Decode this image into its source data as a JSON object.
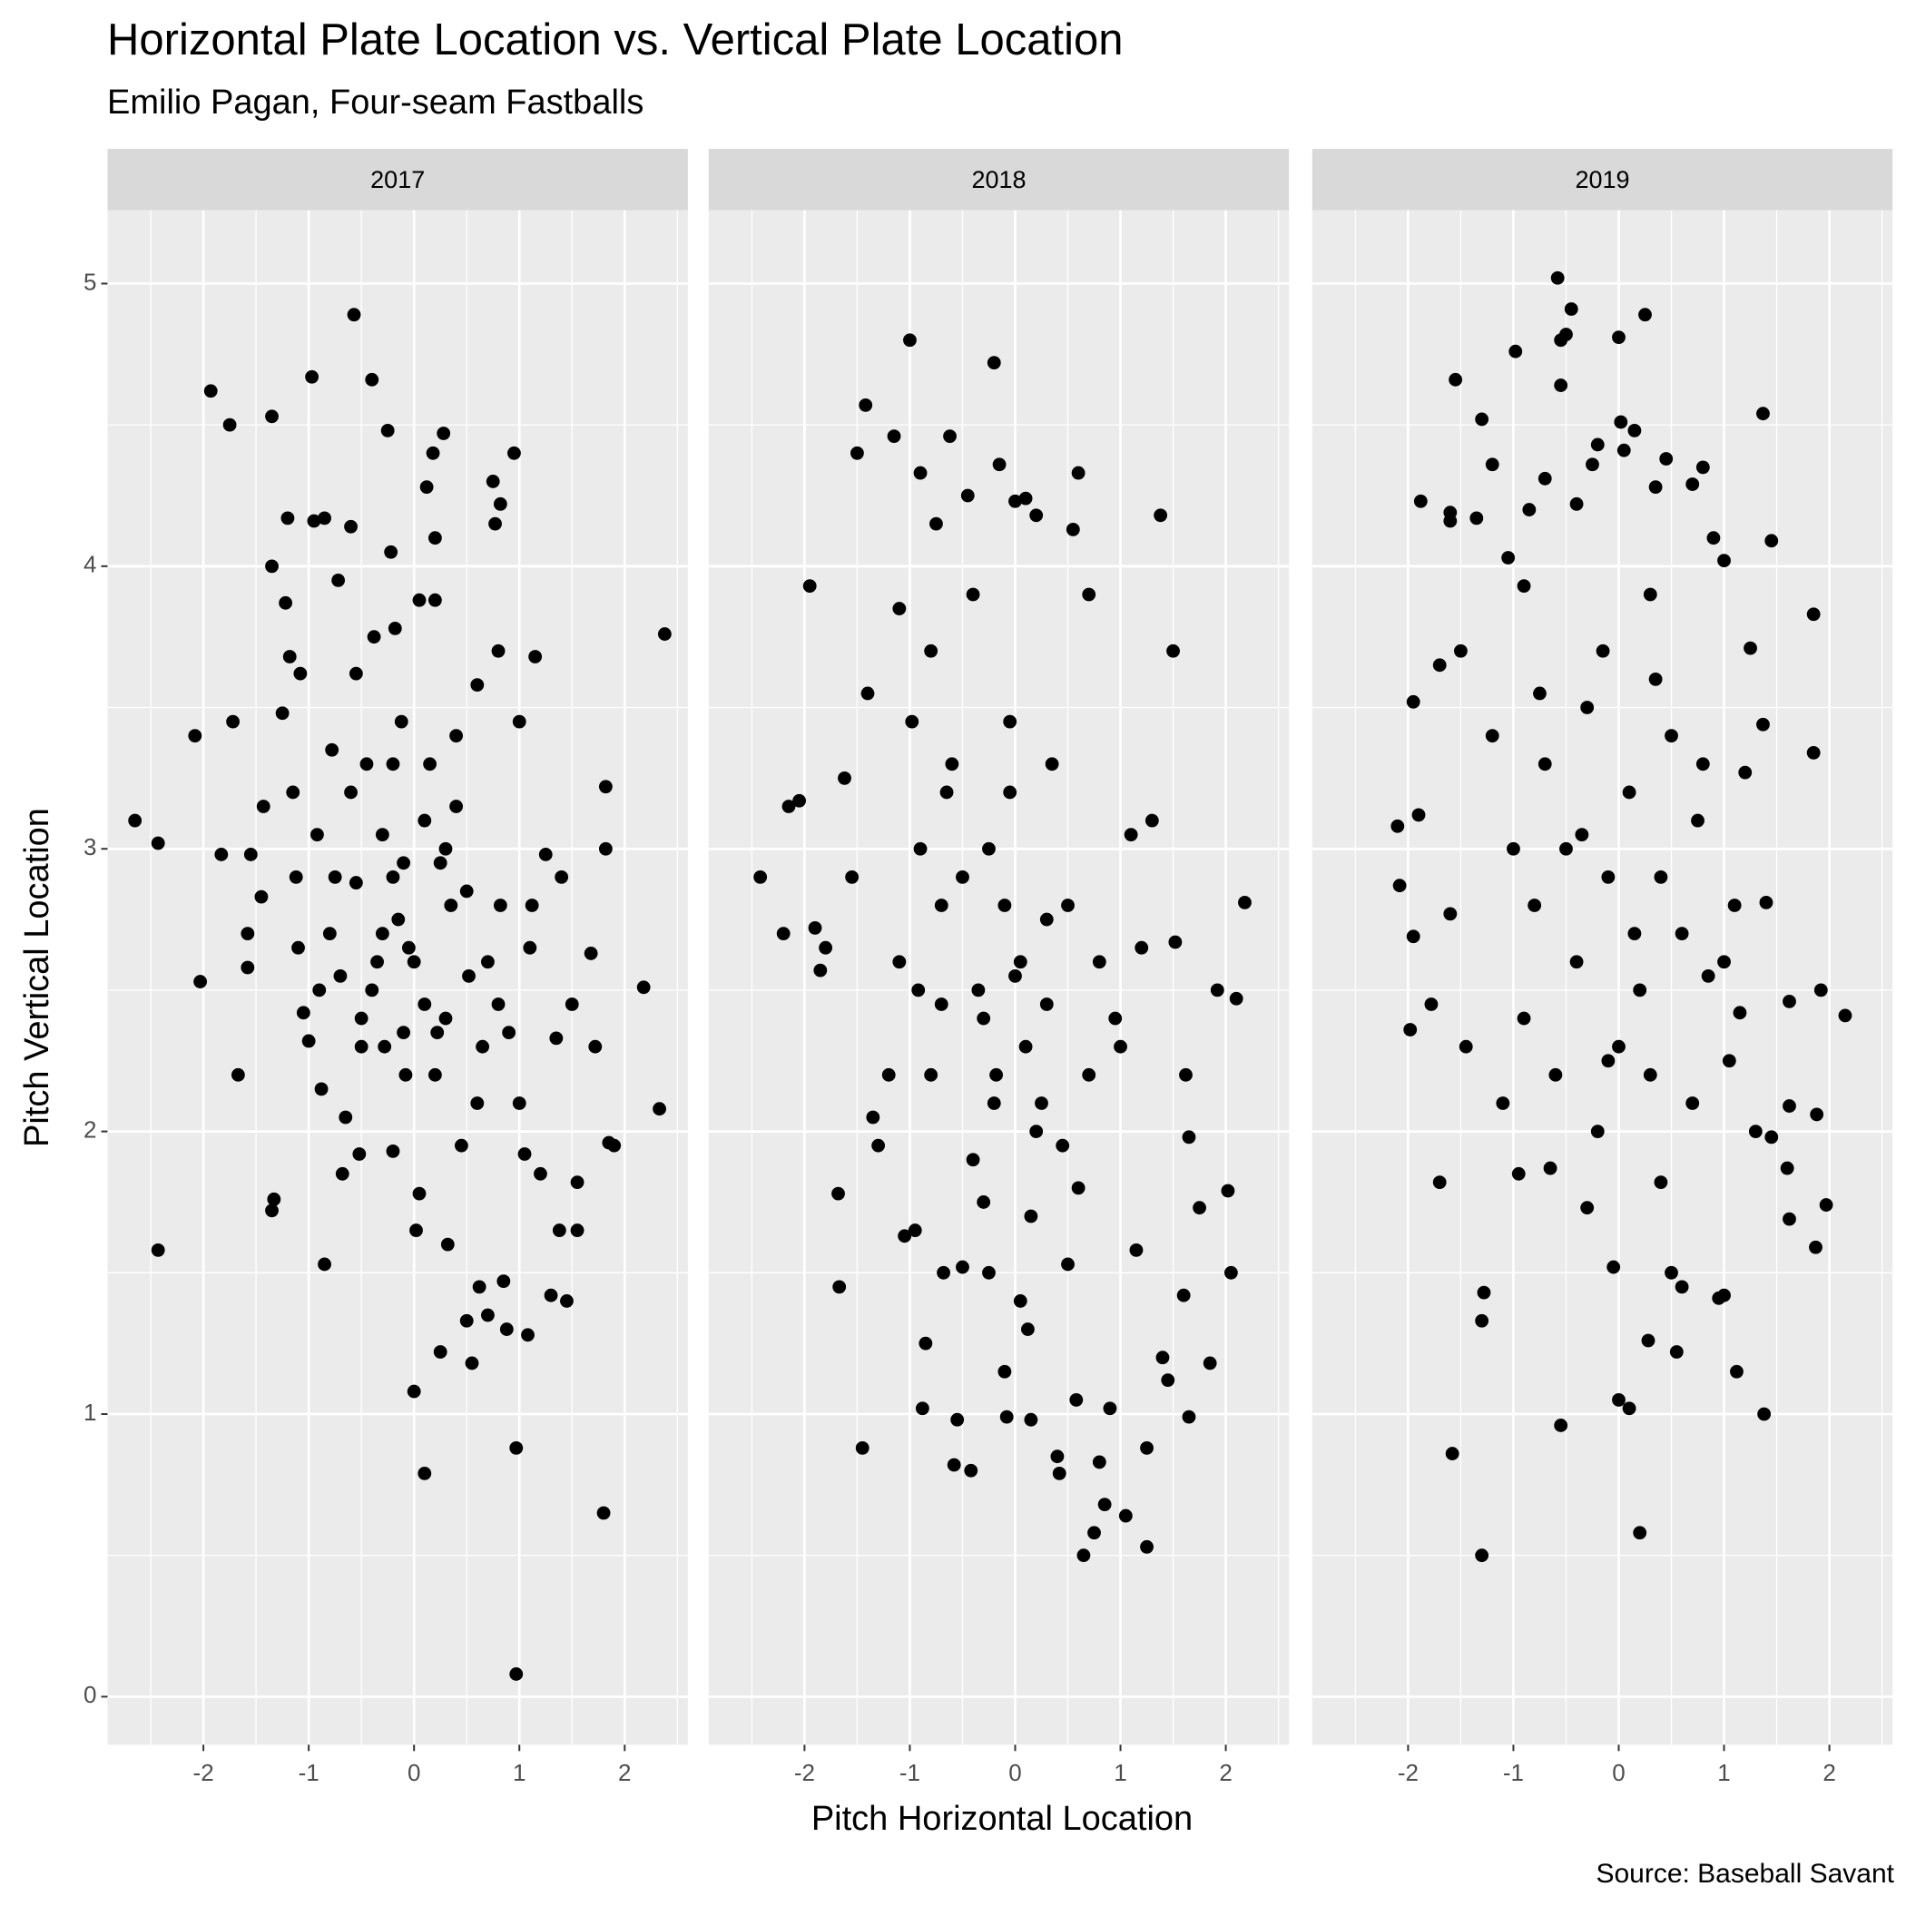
{
  "chart_data": {
    "type": "scatter",
    "title": "Horizontal Plate Location vs. Vertical Plate Location",
    "subtitle": "Emilio Pagan, Four-seam Fastballs",
    "x_label": "Pitch Horizontal Location",
    "y_label": "Pitch Vertical Location",
    "caption": "Source: Baseball Savant",
    "color": "#000000",
    "grid": true,
    "xlim": [
      -2.91,
      2.6
    ],
    "ylim": [
      -0.17,
      5.26
    ],
    "xticks": [
      -2,
      -1,
      0,
      1,
      2
    ],
    "yticks": [
      0,
      1,
      2,
      3,
      4,
      5
    ],
    "x_minor_breaks": [
      -2.5,
      -1.5,
      -0.5,
      0.5,
      1.5,
      2.5
    ],
    "y_minor_breaks": [
      0.5,
      1.5,
      2.5,
      3.5,
      4.5
    ],
    "panels": [
      {
        "name": "2017",
        "x": [
          -2.65,
          -2.43,
          -2.43,
          -2.08,
          -2.03,
          -1.93,
          -1.83,
          -1.75,
          -1.72,
          -1.67,
          -1.58,
          -1.58,
          -1.55,
          -1.45,
          -1.43,
          -1.35,
          -1.35,
          -1.35,
          -1.33,
          -1.25,
          -1.22,
          -1.2,
          -1.18,
          -1.15,
          -1.12,
          -1.1,
          -1.08,
          -1.05,
          -1.0,
          -0.97,
          -0.95,
          -0.92,
          -0.9,
          -0.88,
          -0.85,
          -0.85,
          -0.78,
          -0.75,
          -0.72,
          -0.7,
          -0.68,
          -0.65,
          -0.6,
          -0.57,
          -0.55,
          -0.55,
          -0.52,
          -0.5,
          -0.45,
          -0.4,
          -0.38,
          -0.35,
          -0.3,
          -0.28,
          -0.25,
          -0.22,
          -0.2,
          -0.18,
          -0.15,
          -0.12,
          -0.1,
          -0.08,
          -0.05,
          0.0,
          0.02,
          0.05,
          0.05,
          0.1,
          0.1,
          0.12,
          0.15,
          0.18,
          0.2,
          0.2,
          0.22,
          0.25,
          0.28,
          0.3,
          0.32,
          0.35,
          0.4,
          0.45,
          0.5,
          0.52,
          0.55,
          0.6,
          0.62,
          0.65,
          0.7,
          0.75,
          0.77,
          0.8,
          0.82,
          0.82,
          0.85,
          0.88,
          0.9,
          0.95,
          0.97,
          0.97,
          1.0,
          1.05,
          1.08,
          1.12,
          1.15,
          1.2,
          1.25,
          1.3,
          1.35,
          1.38,
          1.4,
          1.45,
          1.5,
          1.55,
          1.55,
          1.68,
          1.72,
          1.8,
          1.82,
          1.82,
          1.85,
          1.9,
          2.18,
          2.33,
          2.38,
          -0.3,
          -0.2,
          0.0,
          0.1,
          0.3,
          -0.1,
          0.5,
          -0.4,
          0.2,
          0.6,
          -0.6,
          0.4,
          0.7,
          -0.8,
          1.0,
          -0.2,
          0.25,
          -0.5,
          0.8,
          1.1
        ],
        "y": [
          3.1,
          3.02,
          1.58,
          3.4,
          2.53,
          4.62,
          2.98,
          4.5,
          3.45,
          2.2,
          2.7,
          2.58,
          2.98,
          2.83,
          3.15,
          4.53,
          4.0,
          1.72,
          1.76,
          3.48,
          3.87,
          4.17,
          3.68,
          3.2,
          2.9,
          2.65,
          3.62,
          2.42,
          2.32,
          4.67,
          4.16,
          3.05,
          2.5,
          2.15,
          1.53,
          4.17,
          3.35,
          2.9,
          3.95,
          2.55,
          1.85,
          2.05,
          4.14,
          4.89,
          3.62,
          2.88,
          1.92,
          2.4,
          3.3,
          4.66,
          3.75,
          2.6,
          3.05,
          2.3,
          4.48,
          4.05,
          1.93,
          3.78,
          2.75,
          3.45,
          2.95,
          2.2,
          2.65,
          1.08,
          1.65,
          3.88,
          1.78,
          2.45,
          0.79,
          4.28,
          3.3,
          4.4,
          4.1,
          3.88,
          2.35,
          1.22,
          4.47,
          3.0,
          1.6,
          2.8,
          3.15,
          1.95,
          1.33,
          2.55,
          1.18,
          3.58,
          1.45,
          2.3,
          1.35,
          4.3,
          4.15,
          3.7,
          2.8,
          4.22,
          1.47,
          1.3,
          2.35,
          4.4,
          0.88,
          0.08,
          3.45,
          1.92,
          1.28,
          2.8,
          3.68,
          1.85,
          2.98,
          1.42,
          2.33,
          1.65,
          2.9,
          1.4,
          2.45,
          1.82,
          1.65,
          2.63,
          2.3,
          0.65,
          3.22,
          3.0,
          1.96,
          1.95,
          2.51,
          2.08,
          3.76,
          2.7,
          2.9,
          2.6,
          3.1,
          2.4,
          2.35,
          2.85,
          2.5,
          2.2,
          2.1,
          3.2,
          3.4,
          2.6,
          2.7,
          2.1,
          3.3,
          2.95,
          2.3,
          2.45,
          2.65
        ]
      },
      {
        "name": "2018",
        "x": [
          -2.42,
          -2.2,
          -2.15,
          -2.05,
          -1.95,
          -1.9,
          -1.85,
          -1.8,
          -1.68,
          -1.67,
          -1.62,
          -1.55,
          -1.5,
          -1.45,
          -1.42,
          -1.4,
          -1.35,
          -1.3,
          -1.2,
          -1.15,
          -1.1,
          -1.05,
          -1.0,
          -0.98,
          -0.95,
          -0.92,
          -0.9,
          -0.88,
          -0.85,
          -0.8,
          -0.75,
          -0.7,
          -0.68,
          -0.65,
          -0.62,
          -0.58,
          -0.55,
          -0.5,
          -0.45,
          -0.42,
          -0.4,
          -0.35,
          -0.3,
          -0.25,
          -0.2,
          -0.18,
          -0.15,
          -0.1,
          -0.08,
          -0.05,
          0.0,
          0.05,
          0.1,
          0.12,
          0.15,
          0.2,
          0.25,
          0.3,
          0.35,
          0.4,
          0.42,
          0.5,
          0.55,
          0.58,
          0.6,
          0.65,
          0.7,
          0.75,
          0.8,
          0.85,
          0.9,
          0.95,
          1.05,
          1.1,
          1.15,
          1.2,
          1.25,
          1.25,
          1.3,
          1.38,
          1.4,
          1.45,
          1.5,
          1.52,
          1.6,
          1.62,
          1.65,
          1.65,
          1.75,
          1.85,
          1.92,
          2.02,
          2.05,
          2.1,
          2.18,
          -0.3,
          -0.1,
          0.1,
          0.2,
          -0.5,
          0.0,
          -0.2,
          0.3,
          -0.6,
          0.5,
          -0.4,
          0.15,
          -0.7,
          0.7,
          -0.9,
          0.45,
          -0.05,
          0.8,
          -1.1,
          0.6,
          -0.25,
          0.05,
          1.0,
          -0.8
        ],
        "y": [
          2.9,
          2.7,
          3.15,
          3.17,
          3.93,
          2.72,
          2.57,
          2.65,
          1.78,
          1.45,
          3.25,
          2.9,
          4.4,
          0.88,
          4.57,
          3.55,
          2.05,
          1.95,
          2.2,
          4.46,
          3.85,
          1.63,
          4.8,
          3.45,
          1.65,
          2.5,
          4.33,
          1.02,
          1.25,
          3.7,
          4.15,
          2.8,
          1.5,
          3.2,
          4.46,
          0.82,
          0.98,
          1.52,
          4.25,
          0.8,
          3.9,
          2.5,
          1.75,
          3.0,
          4.72,
          2.2,
          4.36,
          1.15,
          0.99,
          3.45,
          4.23,
          2.6,
          4.24,
          1.3,
          0.98,
          4.18,
          2.1,
          2.75,
          3.3,
          0.85,
          0.79,
          1.53,
          4.13,
          1.05,
          4.33,
          0.5,
          3.9,
          0.58,
          0.83,
          0.68,
          1.02,
          2.4,
          0.64,
          3.05,
          1.58,
          2.65,
          0.53,
          0.88,
          3.1,
          4.18,
          1.2,
          1.12,
          3.7,
          2.67,
          1.42,
          2.2,
          0.99,
          1.98,
          1.73,
          1.18,
          2.5,
          1.79,
          1.5,
          2.47,
          2.81,
          2.4,
          2.8,
          2.3,
          2.0,
          2.9,
          2.55,
          2.1,
          2.45,
          3.3,
          2.8,
          1.9,
          1.7,
          2.45,
          2.2,
          3.0,
          1.95,
          3.2,
          2.6,
          2.6,
          1.8,
          1.5,
          1.4,
          2.3,
          2.2
        ]
      },
      {
        "name": "2019",
        "x": [
          -2.1,
          -2.08,
          -1.98,
          -1.95,
          -1.95,
          -1.9,
          -1.88,
          -1.78,
          -1.7,
          -1.7,
          -1.6,
          -1.6,
          -1.6,
          -1.58,
          -1.55,
          -1.5,
          -1.45,
          -1.35,
          -1.3,
          -1.3,
          -1.28,
          -1.3,
          -1.2,
          -1.1,
          -1.05,
          -0.98,
          -0.95,
          -0.9,
          -0.85,
          -0.75,
          -0.7,
          -0.65,
          -0.58,
          -0.55,
          -0.55,
          -0.55,
          -0.5,
          -0.45,
          -0.4,
          -0.35,
          -0.3,
          -0.25,
          -0.2,
          -0.1,
          -0.05,
          0.0,
          0.0,
          0.02,
          0.05,
          0.1,
          0.15,
          0.2,
          0.25,
          0.28,
          0.3,
          0.35,
          0.4,
          0.45,
          0.5,
          0.55,
          0.6,
          0.7,
          0.75,
          0.8,
          0.85,
          0.9,
          0.95,
          1.0,
          1.0,
          1.05,
          1.1,
          1.12,
          1.15,
          1.2,
          1.25,
          1.3,
          1.37,
          1.37,
          1.38,
          1.4,
          1.45,
          1.45,
          1.6,
          1.62,
          1.62,
          1.62,
          1.85,
          1.85,
          1.87,
          1.88,
          1.92,
          1.97,
          2.15,
          -0.3,
          -0.1,
          0.1,
          0.2,
          -0.5,
          0.0,
          0.3,
          -0.4,
          0.5,
          -0.7,
          0.6,
          -0.2,
          0.4,
          -0.8,
          0.8,
          -1.0,
          0.15,
          -0.15,
          0.7,
          -0.6,
          1.0,
          -1.2,
          0.35,
          -0.9
        ],
        "y": [
          3.08,
          2.87,
          2.36,
          3.52,
          2.69,
          3.12,
          4.23,
          2.45,
          1.82,
          3.65,
          4.16,
          4.19,
          2.77,
          0.86,
          4.66,
          3.7,
          2.3,
          4.17,
          4.52,
          1.33,
          1.43,
          0.5,
          4.36,
          2.1,
          4.03,
          4.76,
          1.85,
          3.93,
          4.2,
          3.55,
          4.31,
          1.87,
          5.02,
          4.8,
          4.64,
          0.96,
          4.82,
          4.91,
          4.22,
          3.05,
          1.73,
          4.36,
          4.43,
          2.25,
          1.52,
          4.81,
          1.05,
          4.51,
          4.41,
          1.02,
          4.48,
          0.58,
          4.89,
          1.26,
          3.9,
          4.28,
          1.82,
          4.38,
          1.5,
          1.22,
          1.45,
          4.29,
          3.1,
          4.35,
          2.55,
          4.1,
          1.41,
          4.02,
          1.42,
          2.25,
          2.8,
          1.15,
          2.42,
          3.27,
          3.71,
          2.0,
          4.54,
          3.44,
          1.0,
          2.81,
          4.09,
          1.98,
          1.87,
          1.69,
          2.46,
          2.09,
          3.83,
          3.34,
          1.59,
          2.06,
          2.5,
          1.74,
          2.41,
          3.5,
          2.9,
          3.2,
          2.5,
          3.0,
          2.3,
          2.2,
          2.6,
          3.4,
          3.3,
          2.7,
          2.0,
          2.9,
          2.8,
          3.3,
          3.0,
          2.7,
          3.7,
          2.1,
          2.2,
          2.6,
          3.4,
          3.6,
          2.4
        ]
      }
    ]
  }
}
